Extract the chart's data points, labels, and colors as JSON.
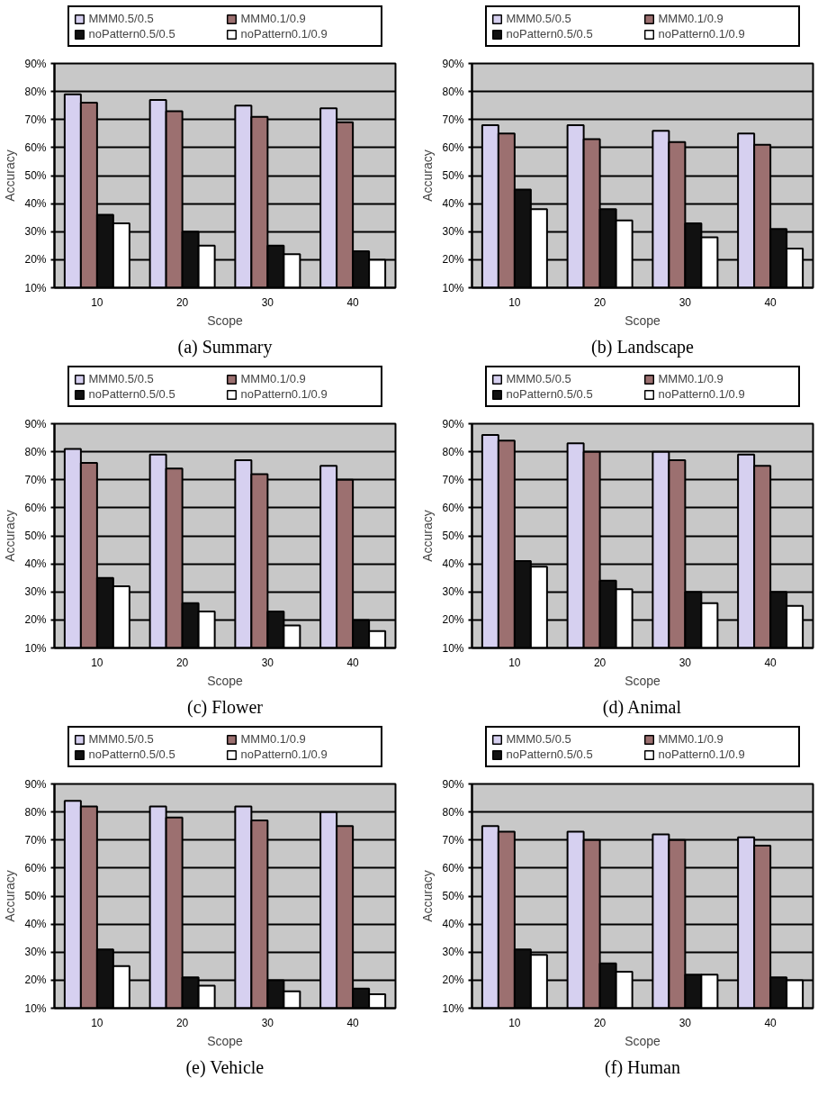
{
  "chart_data": [
    {
      "type": "bar",
      "title": "(a) Summary",
      "xlabel": "Scope",
      "ylabel": "Accuracy",
      "categories": [
        "10",
        "20",
        "30",
        "40"
      ],
      "ylim": [
        10,
        90
      ],
      "yticks": [
        {
          "value": 10,
          "label": "10%"
        },
        {
          "value": 20,
          "label": "20%"
        },
        {
          "value": 30,
          "label": "30%"
        },
        {
          "value": 40,
          "label": "40%"
        },
        {
          "value": 50,
          "label": "50%"
        },
        {
          "value": 60,
          "label": "60%"
        },
        {
          "value": 70,
          "label": "70%"
        },
        {
          "value": 80,
          "label": "80%"
        },
        {
          "value": 90,
          "label": "90%"
        }
      ],
      "grid": "y",
      "legend": "top",
      "series": [
        {
          "name": "MMM0.5/0.5",
          "color": "#d6d0f0",
          "values": [
            79,
            77,
            75,
            74
          ]
        },
        {
          "name": "MMM0.1/0.9",
          "color": "#9c7070",
          "values": [
            76,
            73,
            71,
            69
          ]
        },
        {
          "name": "noPattern0.5/0.5",
          "color": "#111111",
          "values": [
            36,
            30,
            25,
            23
          ]
        },
        {
          "name": "noPattern0.1/0.9",
          "color": "#ffffff",
          "values": [
            33,
            25,
            22,
            20
          ]
        }
      ]
    },
    {
      "type": "bar",
      "title": "(b) Landscape",
      "xlabel": "Scope",
      "ylabel": "Accuracy",
      "categories": [
        "10",
        "20",
        "30",
        "40"
      ],
      "ylim": [
        10,
        90
      ],
      "yticks": [
        {
          "value": 10,
          "label": "10%"
        },
        {
          "value": 20,
          "label": "20%"
        },
        {
          "value": 30,
          "label": "30%"
        },
        {
          "value": 40,
          "label": "40%"
        },
        {
          "value": 50,
          "label": "50%"
        },
        {
          "value": 60,
          "label": "60%"
        },
        {
          "value": 70,
          "label": "70%"
        },
        {
          "value": 80,
          "label": "80%"
        },
        {
          "value": 90,
          "label": "90%"
        }
      ],
      "grid": "y",
      "legend": "top",
      "series": [
        {
          "name": "MMM0.5/0.5",
          "color": "#d6d0f0",
          "values": [
            68,
            68,
            66,
            65
          ]
        },
        {
          "name": "MMM0.1/0.9",
          "color": "#9c7070",
          "values": [
            65,
            63,
            62,
            61
          ]
        },
        {
          "name": "noPattern0.5/0.5",
          "color": "#111111",
          "values": [
            45,
            38,
            33,
            31
          ]
        },
        {
          "name": "noPattern0.1/0.9",
          "color": "#ffffff",
          "values": [
            38,
            34,
            28,
            24
          ]
        }
      ]
    },
    {
      "type": "bar",
      "title": "(c) Flower",
      "xlabel": "Scope",
      "ylabel": "Accuracy",
      "categories": [
        "10",
        "20",
        "30",
        "40"
      ],
      "ylim": [
        10,
        90
      ],
      "yticks": [
        {
          "value": 10,
          "label": "10%"
        },
        {
          "value": 20,
          "label": "20%"
        },
        {
          "value": 30,
          "label": "30%"
        },
        {
          "value": 40,
          "label": "40%"
        },
        {
          "value": 50,
          "label": "50%"
        },
        {
          "value": 60,
          "label": "60%"
        },
        {
          "value": 70,
          "label": "70%"
        },
        {
          "value": 80,
          "label": "80%"
        },
        {
          "value": 90,
          "label": "90%"
        }
      ],
      "grid": "y",
      "legend": "top",
      "series": [
        {
          "name": "MMM0.5/0.5",
          "color": "#d6d0f0",
          "values": [
            81,
            79,
            77,
            75
          ]
        },
        {
          "name": "MMM0.1/0.9",
          "color": "#9c7070",
          "values": [
            76,
            74,
            72,
            70
          ]
        },
        {
          "name": "noPattern0.5/0.5",
          "color": "#111111",
          "values": [
            35,
            26,
            23,
            20
          ]
        },
        {
          "name": "noPattern0.1/0.9",
          "color": "#ffffff",
          "values": [
            32,
            23,
            18,
            16
          ]
        }
      ]
    },
    {
      "type": "bar",
      "title": "(d) Animal",
      "xlabel": "Scope",
      "ylabel": "Accuracy",
      "categories": [
        "10",
        "20",
        "30",
        "40"
      ],
      "ylim": [
        10,
        90
      ],
      "yticks": [
        {
          "value": 10,
          "label": "10%"
        },
        {
          "value": 20,
          "label": "20%"
        },
        {
          "value": 30,
          "label": "30%"
        },
        {
          "value": 40,
          "label": "40%"
        },
        {
          "value": 50,
          "label": "50%"
        },
        {
          "value": 60,
          "label": "60%"
        },
        {
          "value": 70,
          "label": "70%"
        },
        {
          "value": 80,
          "label": "80%"
        },
        {
          "value": 90,
          "label": "90%"
        }
      ],
      "grid": "y",
      "legend": "top",
      "series": [
        {
          "name": "MMM0.5/0.5",
          "color": "#d6d0f0",
          "values": [
            86,
            83,
            80,
            79
          ]
        },
        {
          "name": "MMM0.1/0.9",
          "color": "#9c7070",
          "values": [
            84,
            80,
            77,
            75
          ]
        },
        {
          "name": "noPattern0.5/0.5",
          "color": "#111111",
          "values": [
            41,
            34,
            30,
            30
          ]
        },
        {
          "name": "noPattern0.1/0.9",
          "color": "#ffffff",
          "values": [
            39,
            31,
            26,
            25
          ]
        }
      ]
    },
    {
      "type": "bar",
      "title": "(e) Vehicle",
      "xlabel": "Scope",
      "ylabel": "Accuracy",
      "categories": [
        "10",
        "20",
        "30",
        "40"
      ],
      "ylim": [
        10,
        90
      ],
      "yticks": [
        {
          "value": 10,
          "label": "10%"
        },
        {
          "value": 20,
          "label": "20%"
        },
        {
          "value": 30,
          "label": "30%"
        },
        {
          "value": 40,
          "label": "40%"
        },
        {
          "value": 50,
          "label": "50%"
        },
        {
          "value": 60,
          "label": "60%"
        },
        {
          "value": 70,
          "label": "70%"
        },
        {
          "value": 80,
          "label": "80%"
        },
        {
          "value": 90,
          "label": "90%"
        }
      ],
      "grid": "y",
      "legend": "top",
      "series": [
        {
          "name": "MMM0.5/0.5",
          "color": "#d6d0f0",
          "values": [
            84,
            82,
            82,
            80
          ]
        },
        {
          "name": "MMM0.1/0.9",
          "color": "#9c7070",
          "values": [
            82,
            78,
            77,
            75
          ]
        },
        {
          "name": "noPattern0.5/0.5",
          "color": "#111111",
          "values": [
            31,
            21,
            20,
            17
          ]
        },
        {
          "name": "noPattern0.1/0.9",
          "color": "#ffffff",
          "values": [
            25,
            18,
            16,
            15
          ]
        }
      ]
    },
    {
      "type": "bar",
      "title": "(f) Human",
      "xlabel": "Scope",
      "ylabel": "Accuracy",
      "categories": [
        "10",
        "20",
        "30",
        "40"
      ],
      "ylim": [
        10,
        90
      ],
      "yticks": [
        {
          "value": 10,
          "label": "10%"
        },
        {
          "value": 20,
          "label": "20%"
        },
        {
          "value": 30,
          "label": "30%"
        },
        {
          "value": 40,
          "label": "40%"
        },
        {
          "value": 50,
          "label": "50%"
        },
        {
          "value": 60,
          "label": "60%"
        },
        {
          "value": 70,
          "label": "70%"
        },
        {
          "value": 80,
          "label": "80%"
        },
        {
          "value": 90,
          "label": "90%"
        }
      ],
      "grid": "y",
      "legend": "top",
      "series": [
        {
          "name": "MMM0.5/0.5",
          "color": "#d6d0f0",
          "values": [
            75,
            73,
            72,
            71
          ]
        },
        {
          "name": "MMM0.1/0.9",
          "color": "#9c7070",
          "values": [
            73,
            70,
            70,
            68
          ]
        },
        {
          "name": "noPattern0.5/0.5",
          "color": "#111111",
          "values": [
            31,
            26,
            22,
            21
          ]
        },
        {
          "name": "noPattern0.1/0.9",
          "color": "#ffffff",
          "values": [
            29,
            23,
            22,
            20
          ]
        }
      ]
    }
  ]
}
